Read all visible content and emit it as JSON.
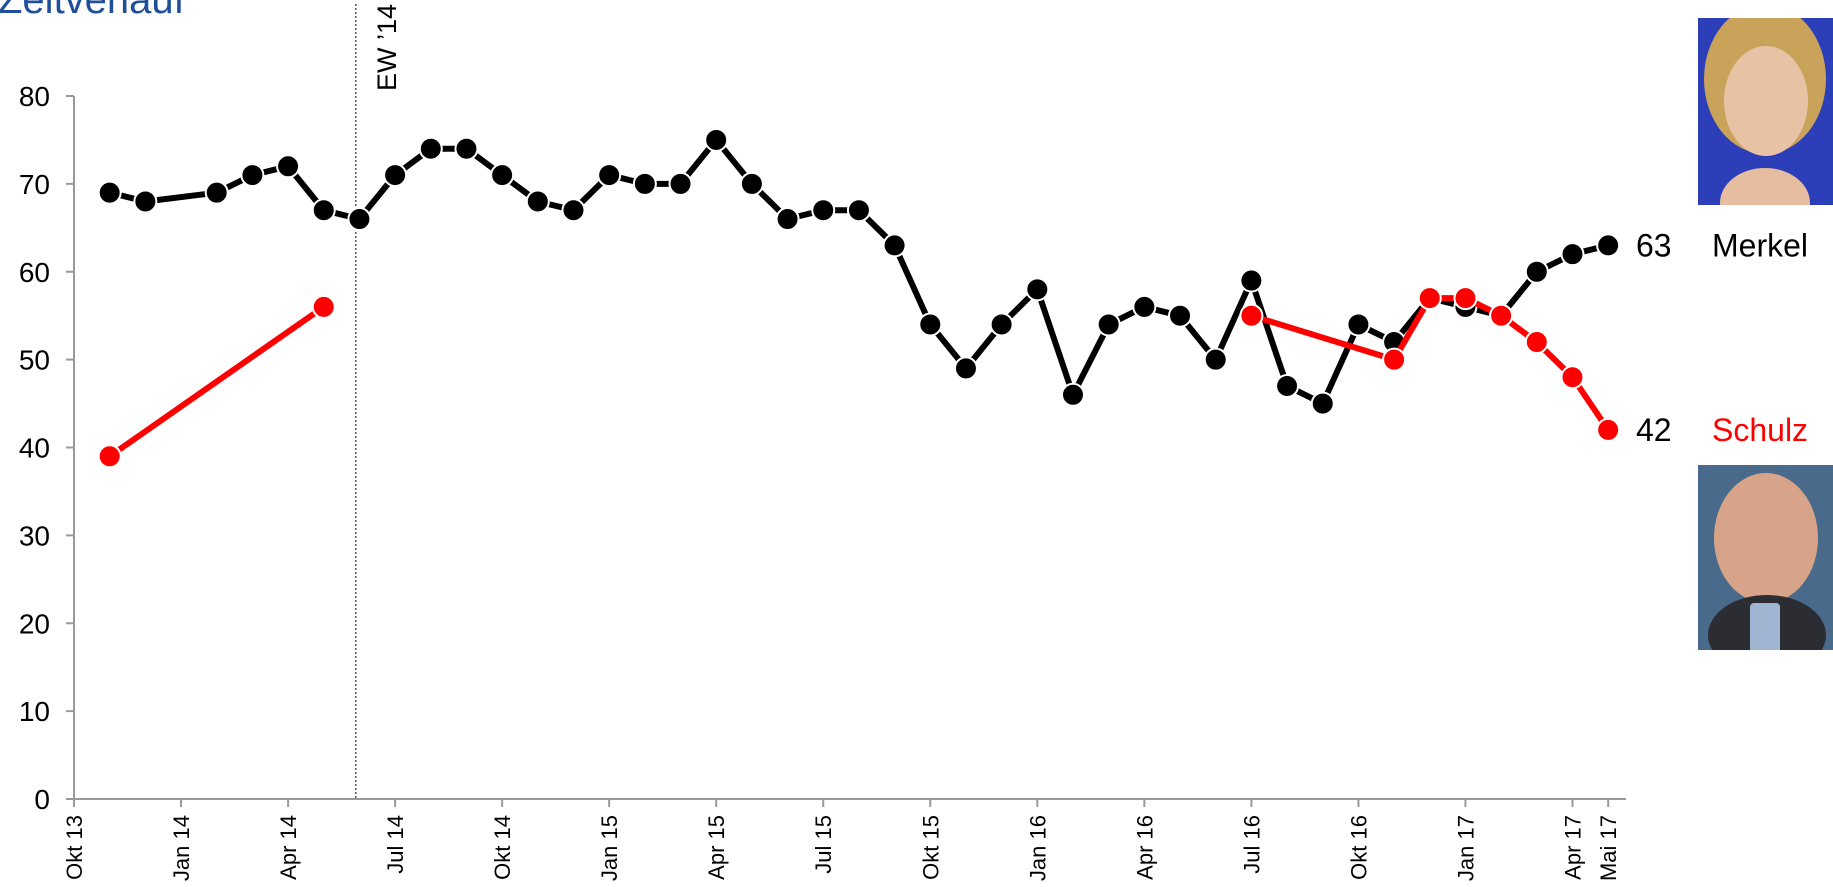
{
  "title": "Zeitverlauf",
  "colors": {
    "merkel": "#000000",
    "schulz": "#ff0000",
    "title": "#1f4e9a",
    "axis": "#999999"
  },
  "chart_data": {
    "type": "line",
    "ylim": [
      0,
      80
    ],
    "yticks": [
      0,
      10,
      20,
      30,
      40,
      50,
      60,
      70,
      80
    ],
    "xrange": [
      "Okt 13",
      "Mai 17"
    ],
    "xticks": [
      {
        "label": "Okt 13",
        "month": 0
      },
      {
        "label": "Jan 14",
        "month": 3
      },
      {
        "label": "Apr 14",
        "month": 6
      },
      {
        "label": "Jul 14",
        "month": 9
      },
      {
        "label": "Okt 14",
        "month": 12
      },
      {
        "label": "Jan 15",
        "month": 15
      },
      {
        "label": "Apr 15",
        "month": 18
      },
      {
        "label": "Jul 15",
        "month": 21
      },
      {
        "label": "Okt 15",
        "month": 24
      },
      {
        "label": "Jan 16",
        "month": 27
      },
      {
        "label": "Apr 16",
        "month": 30
      },
      {
        "label": "Jul 16",
        "month": 33
      },
      {
        "label": "Okt 16",
        "month": 36
      },
      {
        "label": "Jan 17",
        "month": 39
      },
      {
        "label": "Apr 17",
        "month": 42
      },
      {
        "label": "Mai 17",
        "month": 43
      }
    ],
    "annotation": {
      "label": "EW ’14",
      "month": 7.9
    },
    "series": [
      {
        "name": "Merkel",
        "end_label": "63",
        "color": "#000000",
        "points": [
          [
            [
              1.0,
              69
            ],
            [
              2.0,
              68
            ],
            [
              4.0,
              69
            ],
            [
              5.0,
              71
            ],
            [
              6.0,
              72
            ],
            [
              7.0,
              67
            ],
            [
              8.0,
              66
            ],
            [
              9.0,
              71
            ],
            [
              10.0,
              74
            ],
            [
              11.0,
              74
            ],
            [
              12.0,
              71
            ],
            [
              13.0,
              68
            ],
            [
              14.0,
              67
            ],
            [
              15.0,
              71
            ],
            [
              16.0,
              70
            ],
            [
              17.0,
              70
            ],
            [
              18.0,
              75
            ],
            [
              19.0,
              70
            ],
            [
              20.0,
              66
            ],
            [
              21.0,
              67
            ],
            [
              22.0,
              67
            ],
            [
              23.0,
              63
            ],
            [
              24.0,
              54
            ],
            [
              25.0,
              49
            ],
            [
              26.0,
              54
            ],
            [
              27.0,
              58
            ],
            [
              28.0,
              46
            ],
            [
              29.0,
              54
            ],
            [
              30.0,
              56
            ],
            [
              31.0,
              55
            ],
            [
              32.0,
              50
            ],
            [
              33.0,
              59
            ],
            [
              34.0,
              47
            ],
            [
              35.0,
              45
            ],
            [
              36.0,
              54
            ],
            [
              37.0,
              52
            ],
            [
              38.0,
              57
            ],
            [
              39.0,
              56
            ],
            [
              40.0,
              55
            ],
            [
              41.0,
              60
            ],
            [
              42.0,
              62
            ],
            [
              43.0,
              63
            ]
          ]
        ]
      },
      {
        "name": "Schulz",
        "end_label": "42",
        "color": "#ff0000",
        "points": [
          [
            [
              1.0,
              39
            ],
            [
              7.0,
              56
            ]
          ],
          [
            [
              33.0,
              55
            ],
            [
              37.0,
              50
            ],
            [
              38.0,
              57
            ],
            [
              39.0,
              57
            ],
            [
              40.0,
              55
            ],
            [
              41.0,
              52
            ],
            [
              42.0,
              48
            ],
            [
              43.0,
              42
            ]
          ]
        ]
      }
    ]
  }
}
